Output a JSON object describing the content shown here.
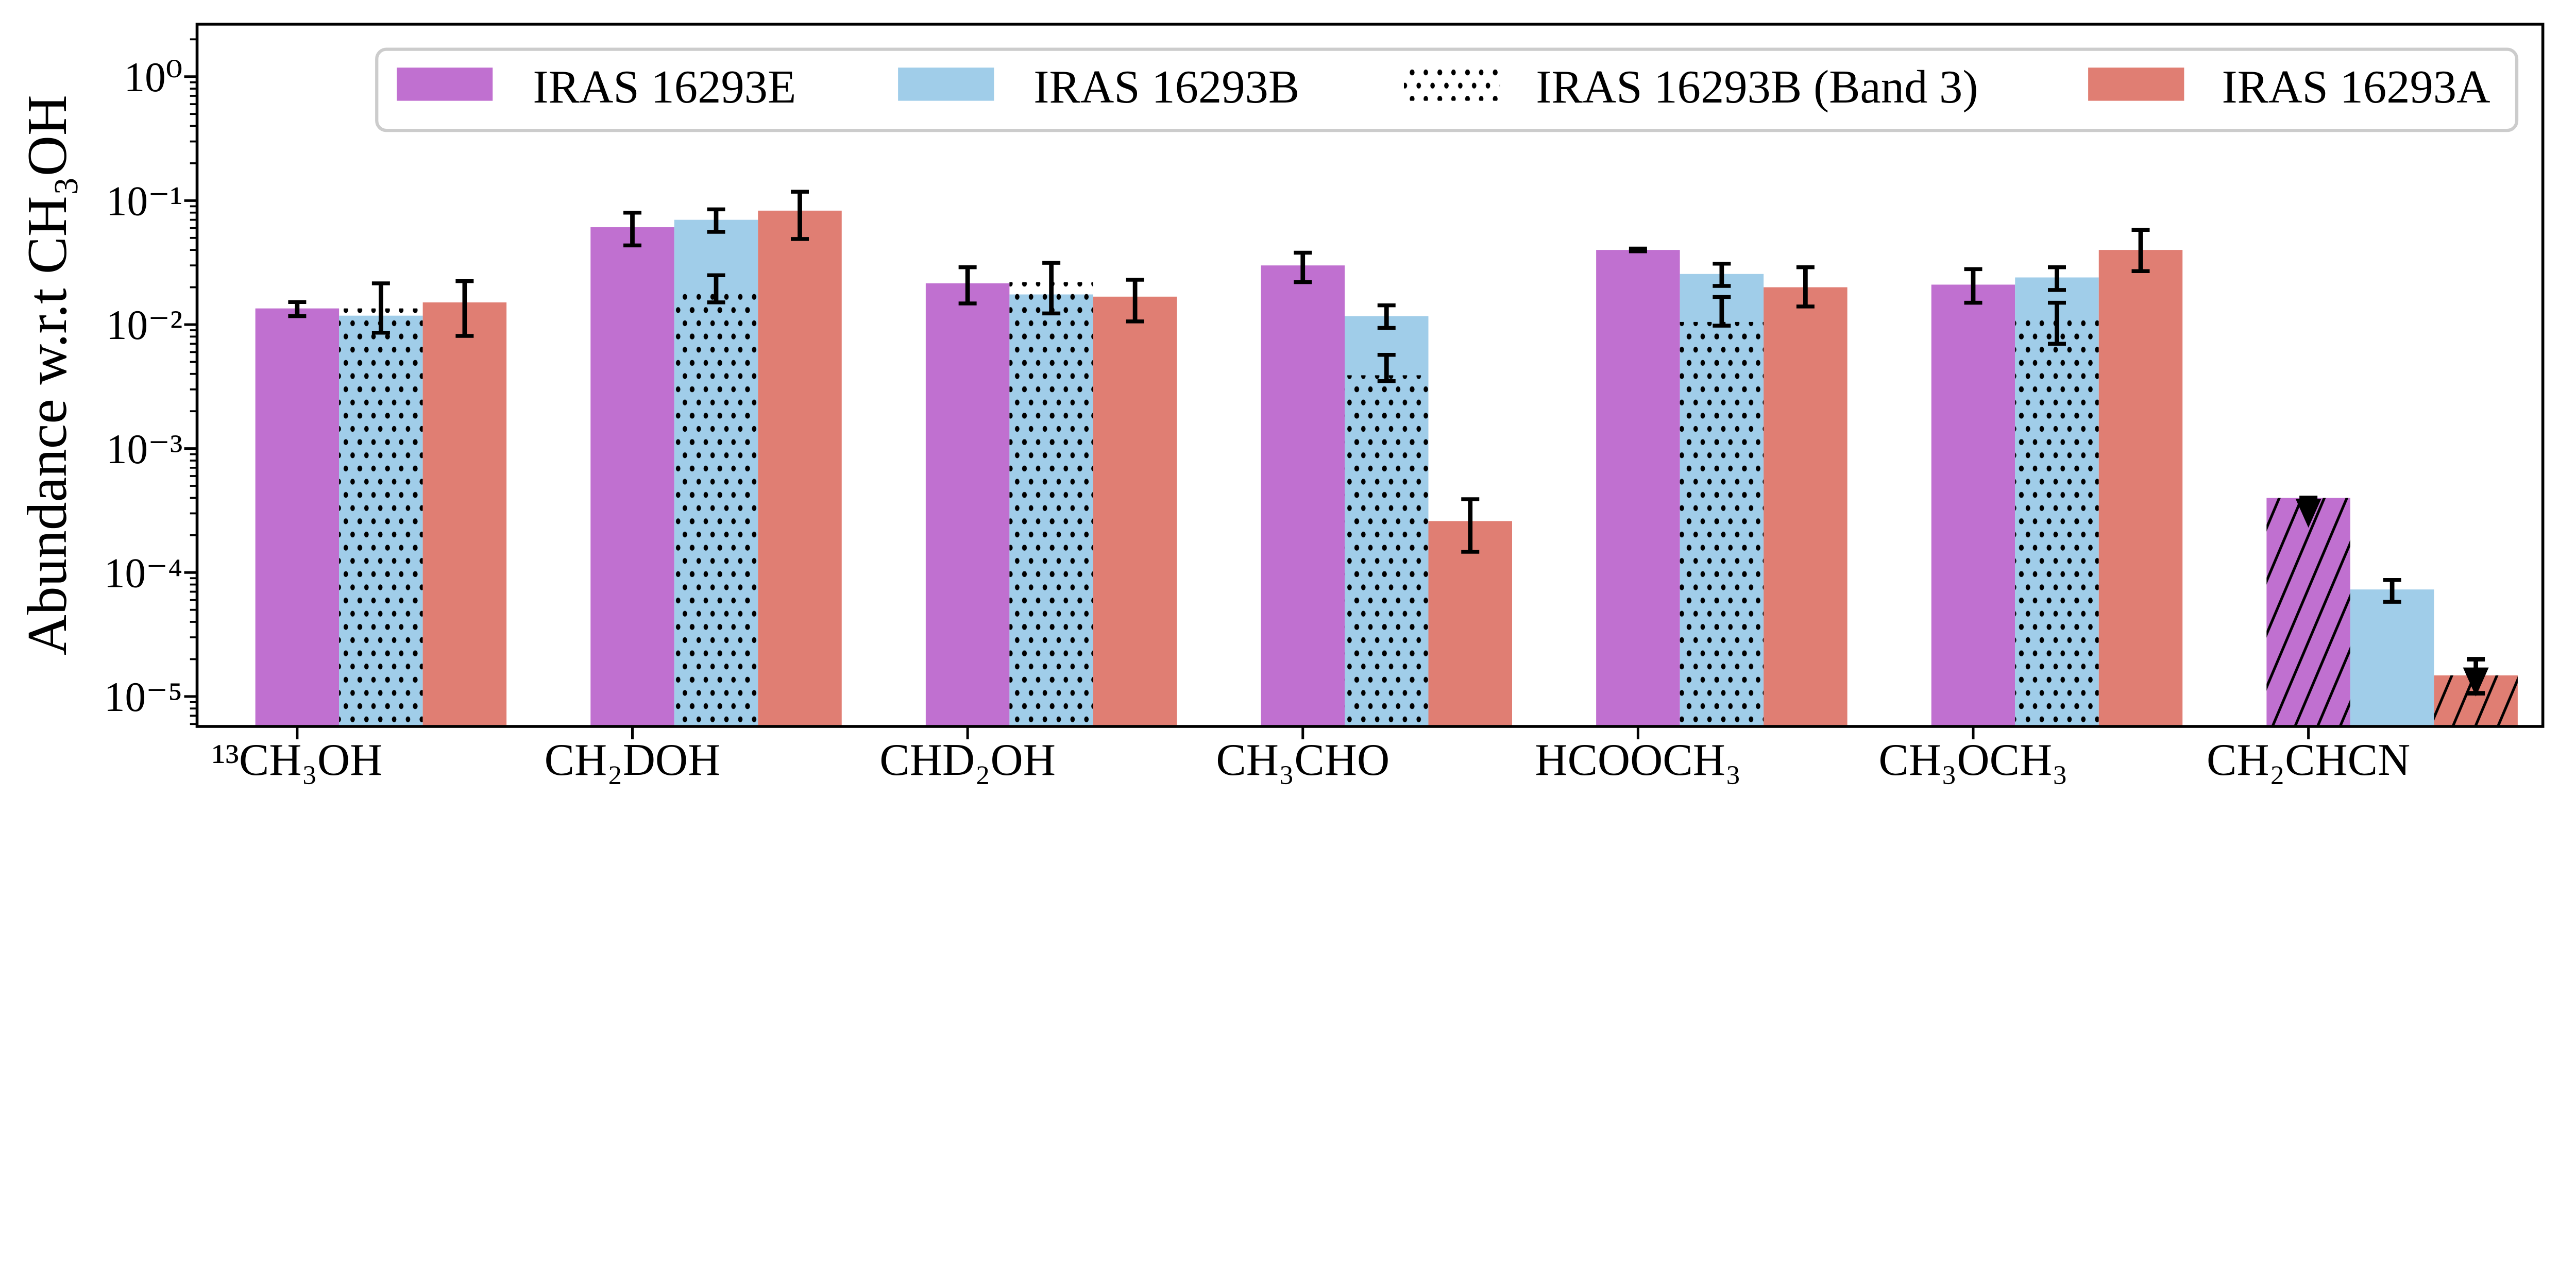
{
  "chart_data": {
    "type": "bar",
    "yscale": "log",
    "ylabel": "Abundance w.r.t CH₃OH",
    "xlabel": "",
    "ylim": [
      5.7e-06,
      2.6
    ],
    "yticks": [
      1,
      0.1,
      0.01,
      0.001,
      0.0001,
      1e-05
    ],
    "ytick_labels": [
      "10⁰",
      "10⁻¹",
      "10⁻²",
      "10⁻³",
      "10⁻⁴",
      "10⁻⁵"
    ],
    "categories": [
      "¹³CH₃OH",
      "CH₂DOH",
      "CHD₂OH",
      "CH₃CHO",
      "HCOOCH₃",
      "CH₃OCH₃",
      "CH₂CHCN"
    ],
    "legend_position": "top",
    "series": [
      {
        "name": "IRAS 16293E",
        "color": "#C070D0",
        "style": "solid",
        "offset": 0,
        "values": [
          0.0135,
          0.061,
          0.0215,
          0.03,
          0.04,
          0.021,
          0.0004
        ],
        "err_low": [
          0.0117,
          0.0435,
          0.0148,
          0.022,
          0.039,
          0.015,
          0.00023
        ],
        "err_high": [
          0.0152,
          0.08,
          0.029,
          0.038,
          0.041,
          0.028,
          0.0004
        ],
        "upper_limit": [
          false,
          false,
          false,
          false,
          false,
          false,
          true
        ]
      },
      {
        "name": "IRAS 16293B",
        "color": "#A0CDE9",
        "style": "solid",
        "offset": 1,
        "values": [
          0.0118,
          0.07,
          0.0175,
          0.0117,
          0.0256,
          0.024,
          7.3e-05
        ],
        "err_low": [
          null,
          0.056,
          null,
          0.0094,
          0.0205,
          0.019,
          5.8e-05
        ],
        "err_high": [
          null,
          0.085,
          null,
          0.0143,
          0.031,
          0.029,
          8.7e-05
        ],
        "upper_limit": [
          false,
          false,
          false,
          false,
          false,
          false,
          false
        ]
      },
      {
        "name": "IRAS 16293B (Band 3)",
        "color": "#000000",
        "style": "dotted",
        "offset": 1,
        "values": [
          0.0135,
          0.0178,
          0.022,
          0.0039,
          0.0105,
          0.011,
          null
        ],
        "err_low": [
          0.0086,
          0.0151,
          0.0123,
          0.0035,
          0.0098,
          0.007,
          null
        ],
        "err_high": [
          0.0215,
          0.025,
          0.0315,
          0.0057,
          0.0167,
          0.015,
          null
        ],
        "upper_limit": [
          false,
          false,
          false,
          false,
          false,
          false,
          false
        ]
      },
      {
        "name": "IRAS 16293A",
        "color": "#E07E73",
        "style": "solid",
        "offset": 2,
        "values": [
          0.0151,
          0.083,
          0.0168,
          0.00026,
          0.02,
          0.04,
          1.48e-05
        ],
        "err_low": [
          0.0081,
          0.049,
          0.0106,
          0.000147,
          0.014,
          0.027,
          1e-05
        ],
        "err_high": [
          0.0224,
          0.118,
          0.023,
          0.00039,
          0.029,
          0.058,
          2e-05
        ],
        "upper_limit": [
          false,
          false,
          false,
          false,
          false,
          false,
          true
        ]
      }
    ]
  }
}
